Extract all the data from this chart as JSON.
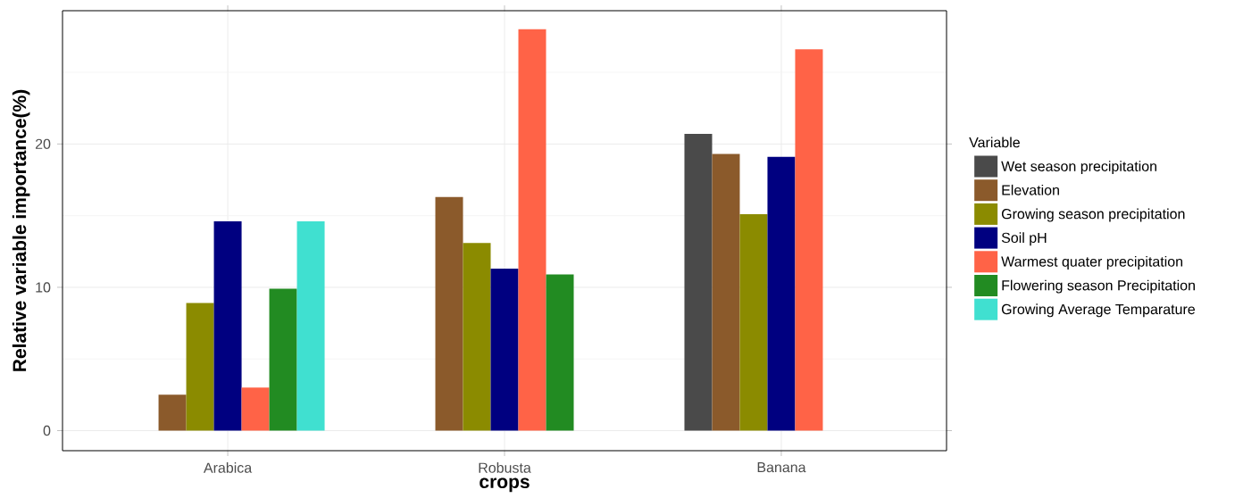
{
  "chart_data": {
    "type": "bar",
    "xlabel": "crops",
    "ylabel": "Relative variable importance(%)",
    "legend_title": "Variable",
    "categories": [
      "Arabica",
      "Robusta",
      "Banana"
    ],
    "series": [
      {
        "name": "Wet season precipitation",
        "color": "#4a4a4a",
        "values": [
          0,
          0,
          20.7
        ]
      },
      {
        "name": "Elevation",
        "color": "#8b5a2b",
        "values": [
          2.5,
          16.3,
          19.3
        ]
      },
      {
        "name": "Growing season precipitation",
        "color": "#8b8b00",
        "values": [
          8.9,
          13.1,
          15.1
        ]
      },
      {
        "name": "Soil pH",
        "color": "#000080",
        "values": [
          14.6,
          11.3,
          19.1
        ]
      },
      {
        "name": "Warmest quater precipitation",
        "color": "#ff6347",
        "values": [
          3.0,
          28.0,
          26.6
        ]
      },
      {
        "name": "Flowering season Precipitation",
        "color": "#228b22",
        "values": [
          9.9,
          10.9,
          0
        ]
      },
      {
        "name": "Growing Average Temparature",
        "color": "#40e0d0",
        "values": [
          14.6,
          0,
          0
        ]
      }
    ],
    "ylim": [
      -1.4,
      29.3
    ],
    "yticks": [
      0,
      {
        "value": 5,
        "label": null
      },
      10,
      {
        "value": 15,
        "label": null
      },
      20,
      {
        "value": 25,
        "label": null
      }
    ],
    "grid": true,
    "legend": "right"
  }
}
